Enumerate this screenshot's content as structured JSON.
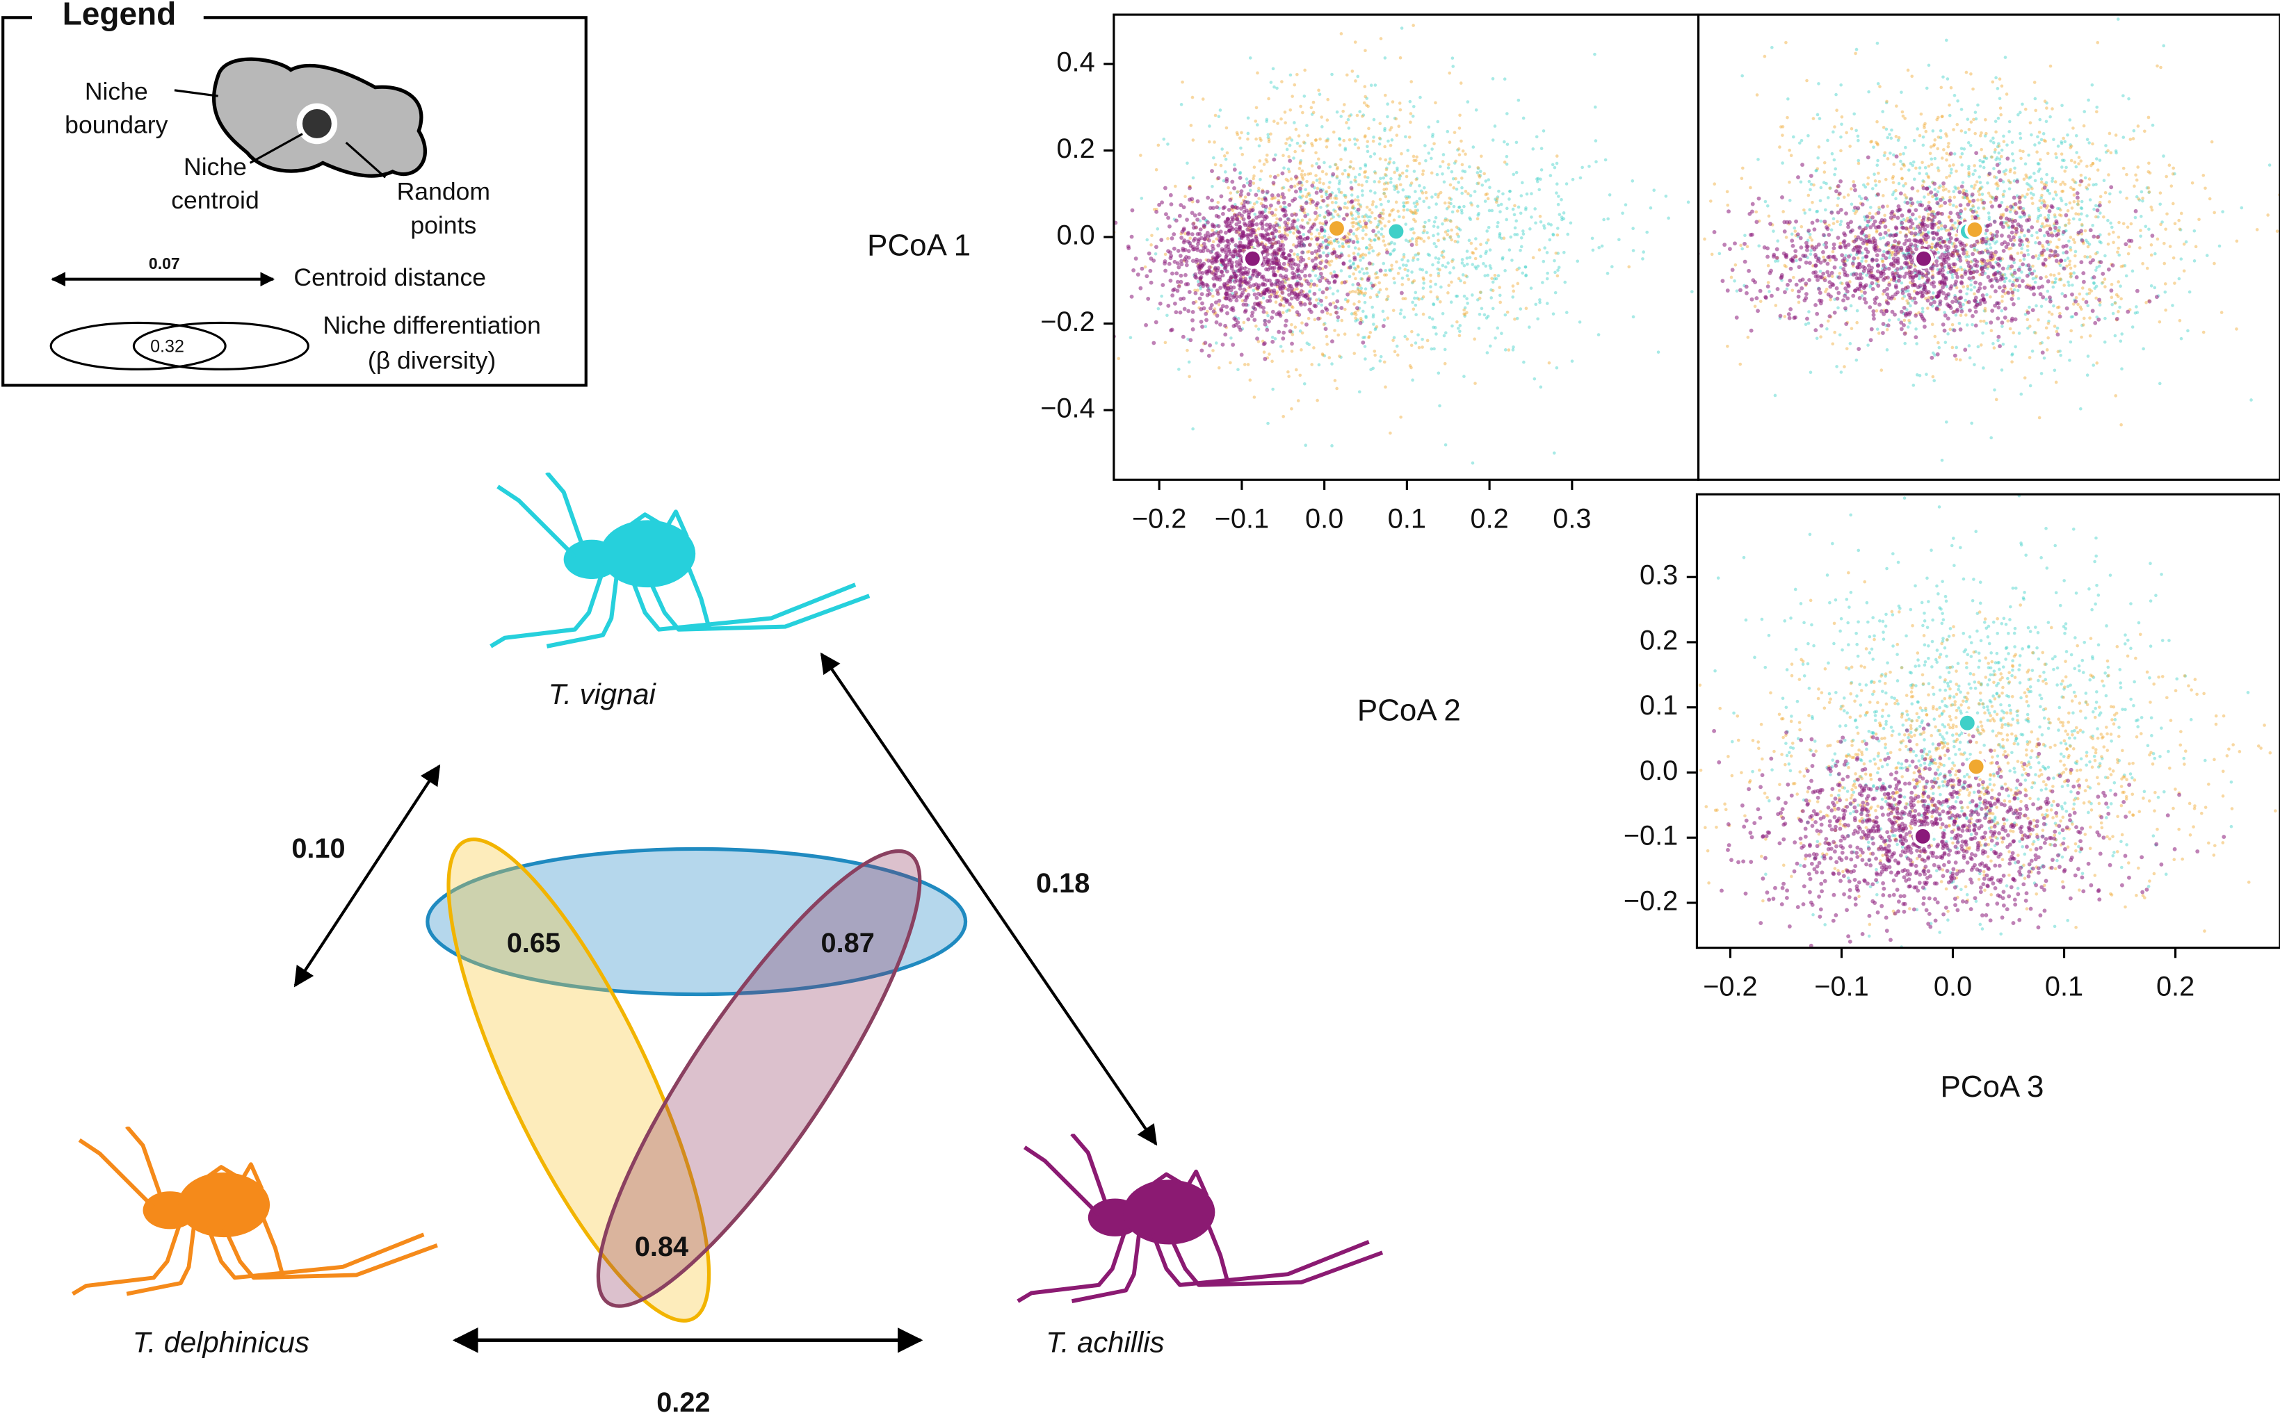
{
  "legend": {
    "title": "Legend",
    "boundary": [
      "Niche",
      "boundary"
    ],
    "centroid": [
      "Niche",
      "centroid"
    ],
    "random": [
      "Random",
      "points"
    ],
    "distance_example": "0.07",
    "distance_label": "Centroid distance",
    "overlap_example": "0.32",
    "overlap_label": [
      "Niche differentiation",
      "(β diversity)"
    ]
  },
  "species": [
    "T. vignai",
    "T. delphinicus",
    "T. achillis"
  ],
  "centroid_distances": {
    "vignai_delphinicus": "0.10",
    "vignai_achillis": "0.18",
    "delphinicus_achillis": "0.22"
  },
  "beta_diversity": {
    "vignai_delphinicus": "0.65",
    "vignai_achillis": "0.87",
    "delphinicus_achillis": "0.84"
  },
  "axis_labels": [
    "PCoA 1",
    "PCoA 2",
    "PCoA 3"
  ],
  "charts": [
    {
      "type": "scatter",
      "xlim": [
        -0.255,
        0.453
      ],
      "ylim": [
        -0.561,
        0.514
      ],
      "xticks": [
        {
          "value": -0.2,
          "label": "−0.2"
        },
        {
          "value": -0.1,
          "label": "−0.1"
        },
        {
          "value": 0,
          "label": "0.0"
        },
        0.1,
        0.2,
        0.3
      ],
      "yticks": [
        {
          "value": -0.4,
          "label": "−0.4"
        },
        {
          "value": -0.2,
          "label": "−0.2"
        },
        {
          "value": 0,
          "label": "0.0"
        },
        0.2,
        0.4
      ],
      "series": [
        {
          "color": "#3fd0c8",
          "x": [
            0.087
          ],
          "values": [
            0.013
          ]
        },
        {
          "color": "#f0a830",
          "x": [
            0.015
          ],
          "values": [
            0.02
          ]
        },
        {
          "color": "#8a1a7a",
          "x": [
            -0.087
          ],
          "values": [
            -0.05
          ]
        }
      ]
    },
    {
      "type": "scatter",
      "xlim": [
        -0.23,
        0.294
      ],
      "ylim": [
        -0.561,
        0.514
      ],
      "series": [
        {
          "color": "#3fd0c8",
          "x": [
            0.013
          ],
          "values": [
            0.013
          ]
        },
        {
          "color": "#f0a830",
          "x": [
            0.019
          ],
          "values": [
            0.017
          ]
        },
        {
          "color": "#8a1a7a",
          "x": [
            -0.027
          ],
          "values": [
            -0.05
          ]
        }
      ]
    },
    {
      "type": "scatter",
      "xlim": [
        -0.23,
        0.294
      ],
      "ylim": [
        -0.269,
        0.427
      ],
      "xticks": [
        {
          "value": -0.2,
          "label": "−0.2"
        },
        {
          "value": -0.1,
          "label": "−0.1"
        },
        {
          "value": 0,
          "label": "0.0"
        },
        0.1,
        0.2
      ],
      "yticks": [
        {
          "value": -0.2,
          "label": "−0.2"
        },
        {
          "value": -0.1,
          "label": "−0.1"
        },
        {
          "value": 0,
          "label": "0.0"
        },
        0.1,
        0.2,
        0.3
      ],
      "series": [
        {
          "color": "#3fd0c8",
          "x": [
            0.013
          ],
          "values": [
            0.076
          ]
        },
        {
          "color": "#f0a830",
          "x": [
            0.021
          ],
          "values": [
            0.009
          ]
        },
        {
          "color": "#8a1a7a",
          "x": [
            -0.027
          ],
          "values": [
            -0.098
          ]
        }
      ]
    }
  ]
}
